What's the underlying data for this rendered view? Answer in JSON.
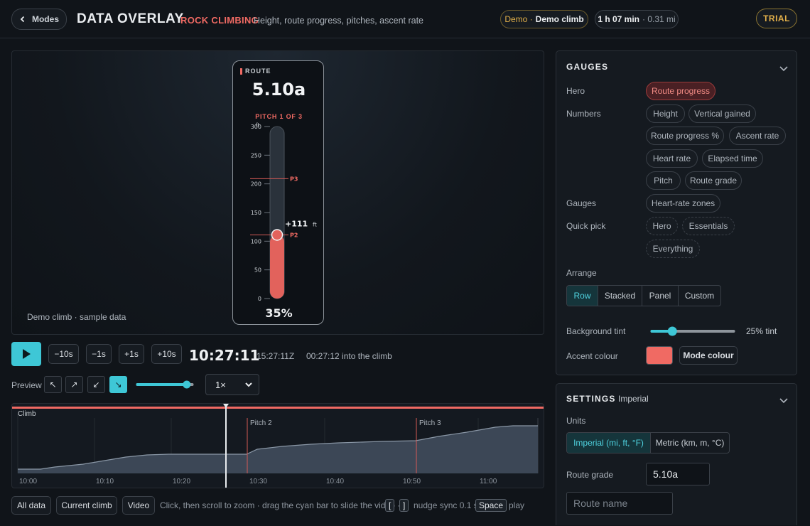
{
  "header": {
    "back_label": "Modes",
    "title": "DATA OVERLAY",
    "mode_name": "ROCK CLIMBING",
    "mode_description": "Height, route progress, pitches, ascent rate",
    "demo_prefix": "Demo ·",
    "demo_name": "Demo climb",
    "duration": "1 h 07 min",
    "distance": "· 0.31 mi",
    "trial_label": "TRIAL"
  },
  "video": {
    "caption": "Demo climb · sample data",
    "gauge": {
      "label": "ROUTE",
      "grade": "5.10a",
      "pitch_label": "PITCH 1 OF 3",
      "unit": "ft",
      "ticks": [
        "0",
        "50",
        "100",
        "150",
        "200",
        "250",
        "300"
      ],
      "max_ft": 300,
      "current_ft": 111,
      "current_label": "+111",
      "current_unit": "ft",
      "markers": [
        {
          "label": "P2",
          "ft": 111
        },
        {
          "label": "P3",
          "ft": 209
        }
      ],
      "percent_label": "35%",
      "fill_fraction": 0.35
    }
  },
  "transport": {
    "nudges": [
      "−10s",
      "−1s",
      "+1s",
      "+10s"
    ],
    "time": "10:27:11",
    "utc": "15:27:11Z",
    "into": "00:27:12 into the climb",
    "preview_label": "Preview",
    "preview_fraction": 0.9,
    "speed": "1×"
  },
  "timeline": {
    "track_label": "Climb",
    "pitch_labels": [
      "Pitch 2",
      "Pitch 3"
    ],
    "ticks": [
      "10:00",
      "10:10",
      "10:20",
      "10:30",
      "10:40",
      "10:50",
      "11:00"
    ]
  },
  "bottom": {
    "all_data": "All data",
    "current_climb": "Current climb",
    "video": "Video",
    "hint1": "Click, then scroll to zoom · drag the cyan bar to slide the video ·",
    "key_open": "[",
    "key_close": "]",
    "hint2": "nudge sync 0.1 s ·",
    "key_space": "Space",
    "hint3": "play"
  },
  "gauges_panel": {
    "title": "GAUGES",
    "hero_label": "Hero",
    "hero_chip": "Route progress",
    "numbers_label": "Numbers",
    "numbers": [
      "Height",
      "Vertical gained",
      "Route progress %",
      "Ascent rate",
      "Heart rate",
      "Elapsed time",
      "Pitch",
      "Route grade"
    ],
    "gauges_label": "Gauges",
    "gauges_chip": "Heart-rate zones",
    "quick_label": "Quick pick",
    "quick": [
      "Hero",
      "Essentials",
      "Everything"
    ],
    "arrange_label": "Arrange",
    "arrange": [
      "Row",
      "Stacked",
      "Panel",
      "Custom"
    ],
    "bg_label": "Background tint",
    "bg_value": "25% tint",
    "bg_fraction": 0.25,
    "accent_label": "Accent colour",
    "accent_color": "#f06a63",
    "mode_colour": "Mode colour"
  },
  "settings_panel": {
    "title": "SETTINGS",
    "subtitle": "Imperial",
    "units_label": "Units",
    "units": [
      "Imperial (mi, ft, °F)",
      "Metric (km, m, °C)"
    ],
    "grade_label": "Route grade",
    "grade_value": "5.10a",
    "route_name_placeholder": "Route name"
  },
  "colors": {
    "accent": "#f06a63",
    "cyan": "#3ec7d6",
    "gold": "#e2b04a"
  }
}
